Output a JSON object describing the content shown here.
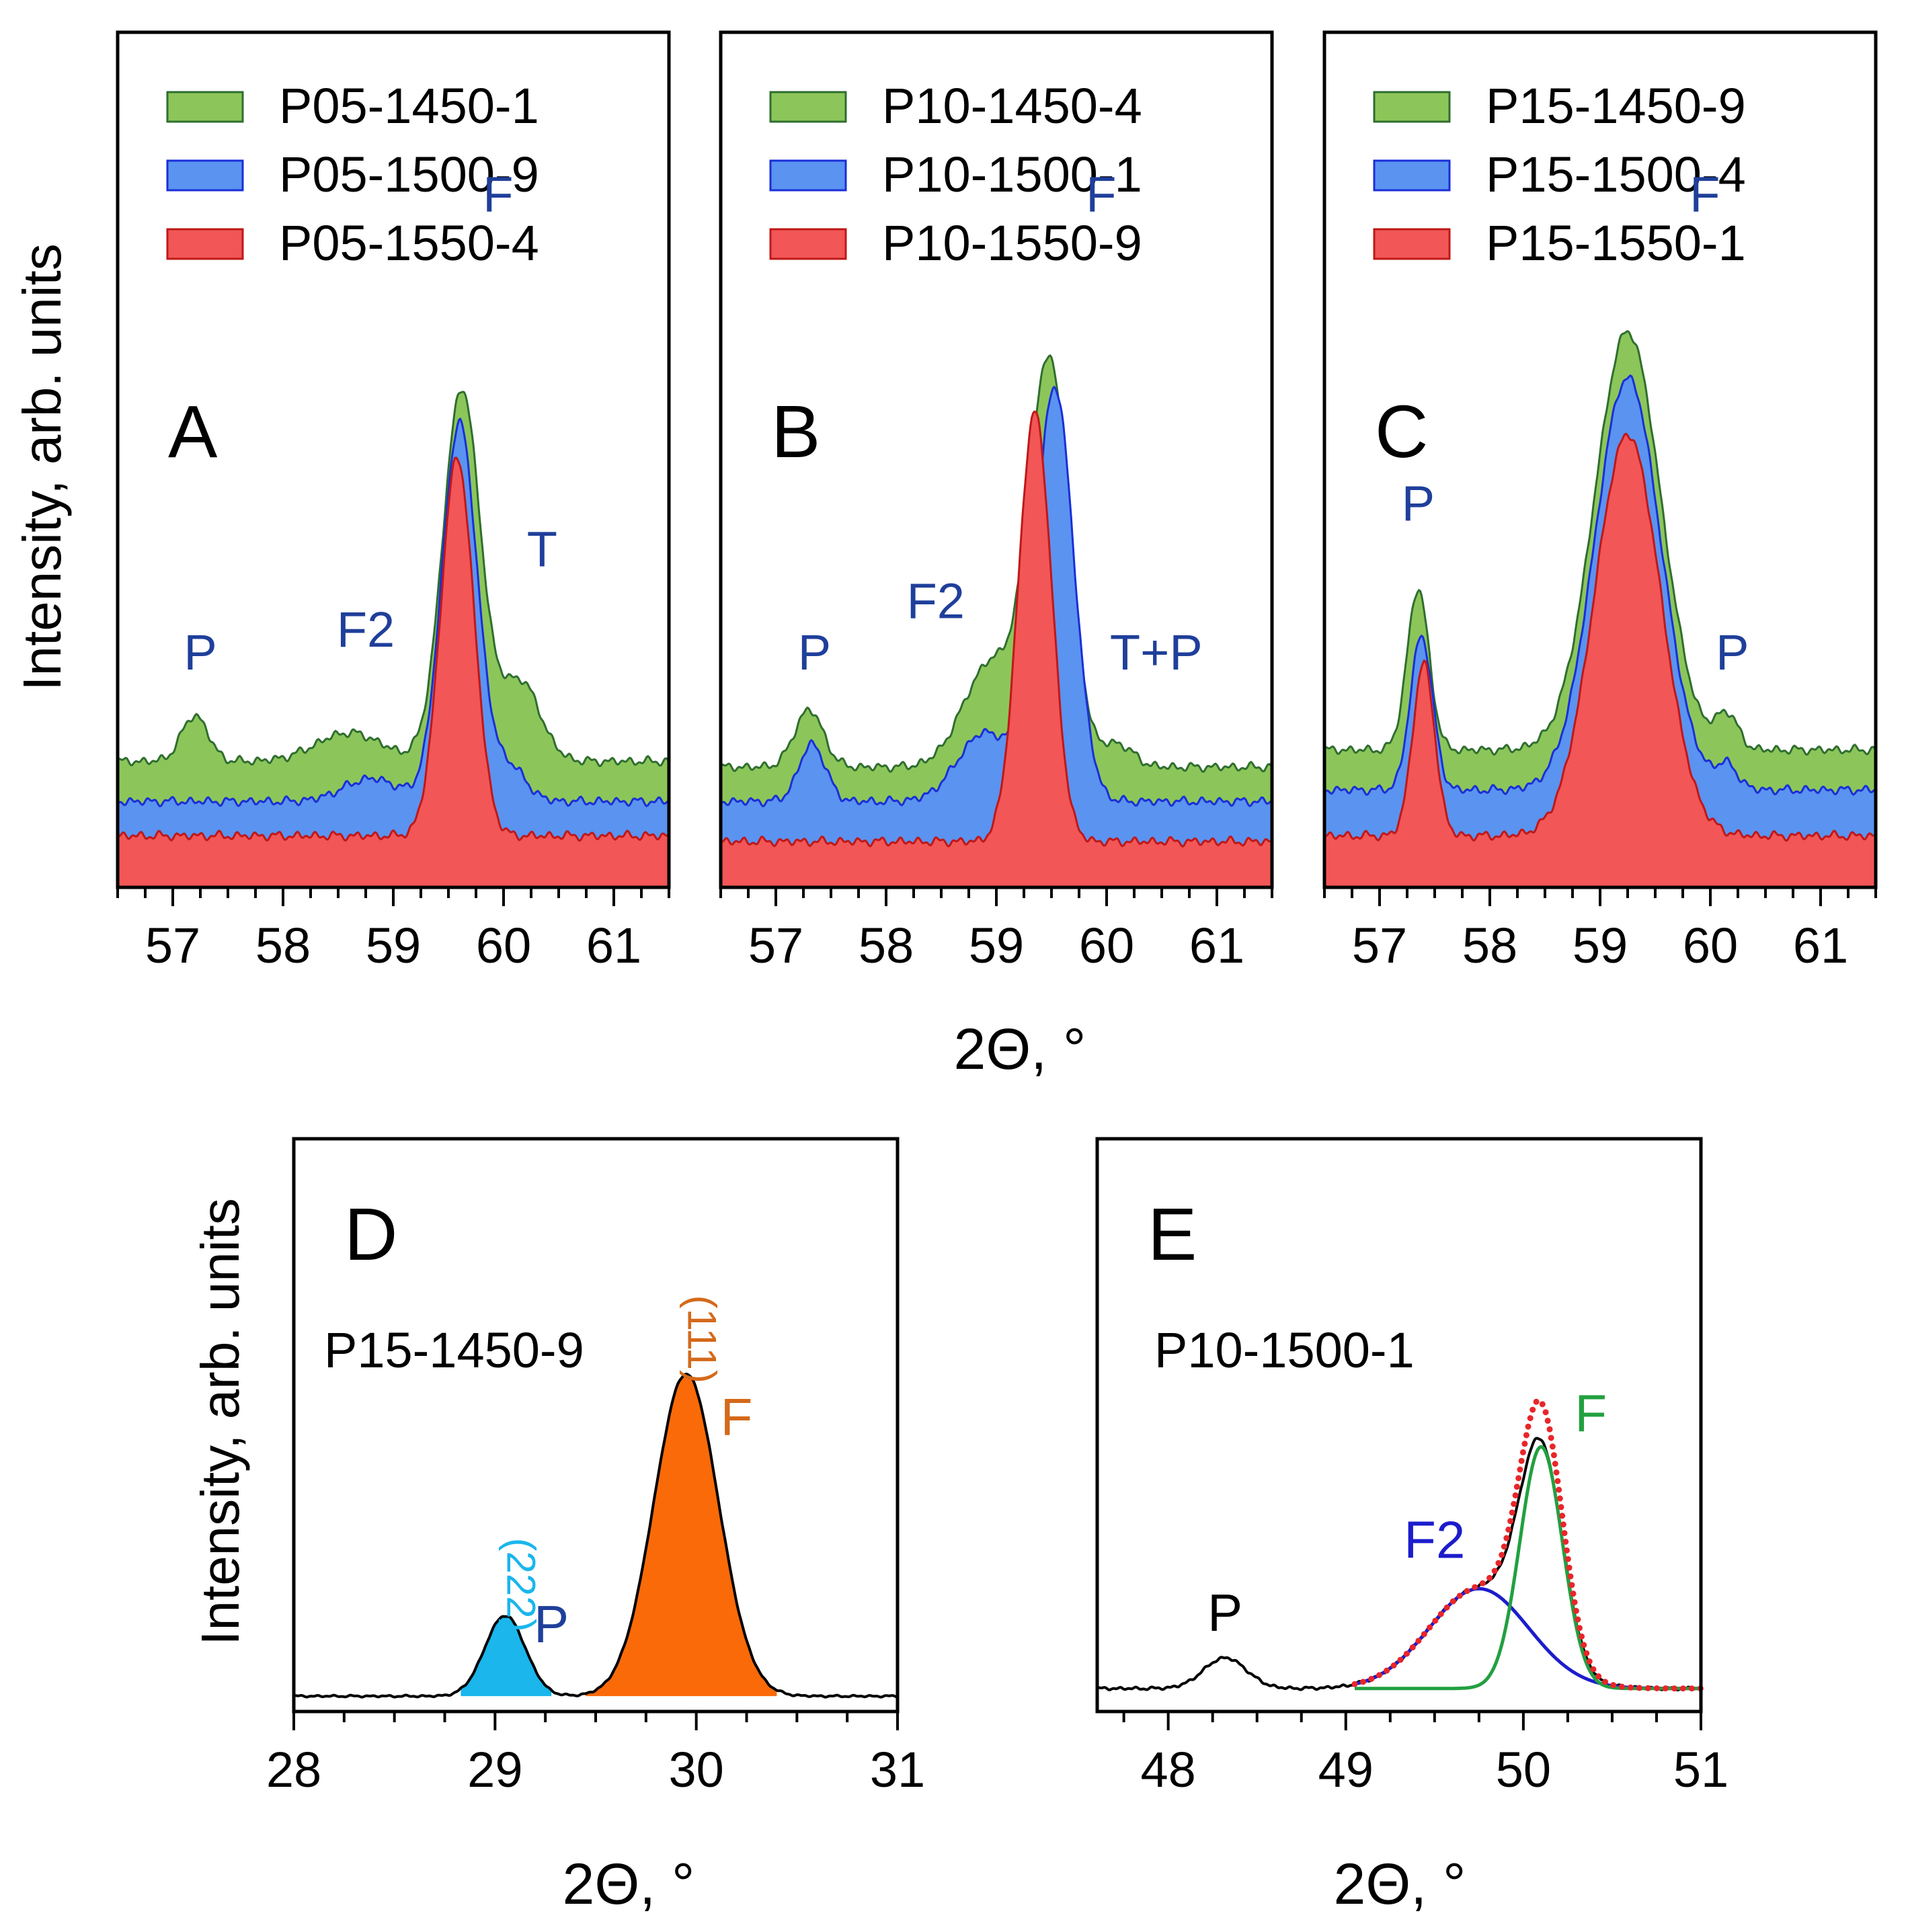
{
  "y_axis_label": "Intensity, arb. units",
  "x_axis_label": "2Θ, °",
  "colors": {
    "green_fill": "#8cc65a",
    "green_line": "#2f6e2f",
    "blue_fill": "#5b93f0",
    "blue_line": "#1a2fd8",
    "red_fill": "#f25656",
    "red_line": "#c01818",
    "cyan_fill": "#1ab6ec",
    "orange_fill": "#fb6a08",
    "orange_text": "#d4691a",
    "label_blue": "#1f3f9a",
    "fit_green": "#22a040",
    "fit_blue": "#1c1ccc",
    "fit_red_dots": "#e8262a",
    "axis": "#000000"
  },
  "chart_data": [
    {
      "id": "A",
      "type": "area",
      "panel_label": "A",
      "xlim": [
        56.5,
        61.5
      ],
      "xticks": [
        57,
        58,
        59,
        60,
        61
      ],
      "xtick_labels": [
        "57",
        "58",
        "59",
        "60",
        "61"
      ],
      "ylim": [
        0,
        100
      ],
      "series": [
        {
          "name": "P05-1450-1",
          "color": "green",
          "baseline": 22,
          "peaks": [
            [
              57.2,
              8,
              0.12
            ],
            [
              58.6,
              5,
              0.3
            ],
            [
              59.62,
              65,
              0.17
            ],
            [
              60.15,
              14,
              0.18
            ]
          ]
        },
        {
          "name": "P05-1500-9",
          "color": "blue",
          "baseline": 15,
          "peaks": [
            [
              58.8,
              4,
              0.25
            ],
            [
              59.6,
              66,
              0.16
            ],
            [
              60.05,
              6,
              0.15
            ]
          ]
        },
        {
          "name": "P05-1550-4",
          "color": "red",
          "baseline": 9,
          "peaks": [
            [
              59.58,
              66,
              0.15
            ]
          ]
        }
      ],
      "peak_labels": [
        {
          "text": "P",
          "x": 57.25,
          "y": 38
        },
        {
          "text": "F2",
          "x": 58.75,
          "y": 42
        },
        {
          "text": "F",
          "x": 59.95,
          "y": 118
        },
        {
          "text": "T",
          "x": 60.35,
          "y": 56
        }
      ]
    },
    {
      "id": "B",
      "type": "area",
      "panel_label": "B",
      "xlim": [
        56.5,
        61.5
      ],
      "xticks": [
        57,
        58,
        59,
        60,
        61
      ],
      "xtick_labels": [
        "57",
        "58",
        "59",
        "60",
        "61"
      ],
      "ylim": [
        0,
        100
      ],
      "series": [
        {
          "name": "P10-1450-4",
          "color": "green",
          "baseline": 21,
          "peaks": [
            [
              57.3,
              10,
              0.13
            ],
            [
              58.95,
              18,
              0.25
            ],
            [
              59.48,
              70,
              0.18
            ],
            [
              60.1,
              4,
              0.14
            ]
          ]
        },
        {
          "name": "P10-1500-1",
          "color": "blue",
          "baseline": 15,
          "peaks": [
            [
              57.33,
              10,
              0.12
            ],
            [
              58.9,
              12,
              0.25
            ],
            [
              59.53,
              72,
              0.17
            ]
          ]
        },
        {
          "name": "P10-1550-9",
          "color": "red",
          "baseline": 8,
          "peaks": [
            [
              59.35,
              75,
              0.15
            ]
          ]
        }
      ],
      "peak_labels": [
        {
          "text": "P",
          "x": 57.35,
          "y": 38
        },
        {
          "text": "F2",
          "x": 58.45,
          "y": 47
        },
        {
          "text": "F",
          "x": 59.95,
          "y": 118
        },
        {
          "text": "T+P",
          "x": 60.45,
          "y": 38
        }
      ]
    },
    {
      "id": "C",
      "type": "area",
      "panel_label": "C",
      "xlim": [
        56.5,
        61.5
      ],
      "xticks": [
        57,
        58,
        59,
        60,
        61
      ],
      "xtick_labels": [
        "57",
        "58",
        "59",
        "60",
        "61"
      ],
      "ylim": [
        0,
        100
      ],
      "series": [
        {
          "name": "P15-1450-9",
          "color": "green",
          "baseline": 24,
          "peaks": [
            [
              57.35,
              28,
              0.1
            ],
            [
              59.25,
              73,
              0.3
            ],
            [
              60.15,
              6,
              0.1
            ]
          ]
        },
        {
          "name": "P15-1500-4",
          "color": "blue",
          "baseline": 17,
          "peaks": [
            [
              57.38,
              27,
              0.1
            ],
            [
              59.25,
              72,
              0.3
            ],
            [
              60.15,
              4,
              0.1
            ]
          ]
        },
        {
          "name": "P15-1550-1",
          "color": "red",
          "baseline": 9,
          "peaks": [
            [
              57.4,
              30,
              0.1
            ],
            [
              59.25,
              70,
              0.3
            ]
          ]
        }
      ],
      "peak_labels": [
        {
          "text": "P",
          "x": 57.35,
          "y": 64
        },
        {
          "text": "F",
          "x": 59.95,
          "y": 118
        },
        {
          "text": "P",
          "x": 60.2,
          "y": 38
        }
      ]
    },
    {
      "id": "D",
      "type": "area",
      "panel_label": "D",
      "sample": "P15-1450-9",
      "xlim": [
        28,
        31
      ],
      "xticks": [
        28,
        29,
        30,
        31
      ],
      "xtick_labels": [
        "28",
        "29",
        "30",
        "31"
      ],
      "ylim": [
        0,
        100
      ],
      "baseline": 4,
      "peaks": [
        {
          "name": "P (222)",
          "center": 29.05,
          "height": 21,
          "width": 0.1,
          "fill": "cyan",
          "fill_range": [
            28.83,
            29.28
          ]
        },
        {
          "name": "F (111)",
          "center": 29.95,
          "height": 84,
          "width": 0.16,
          "fill": "orange",
          "fill_range": [
            29.45,
            30.4
          ]
        }
      ],
      "peak_labels": [
        {
          "text": "P",
          "x": 29.28,
          "y": 18,
          "color": "label_blue"
        },
        {
          "text": "(222)",
          "x": 29.06,
          "y": 33,
          "color": "cyan_fill",
          "rotate": true
        },
        {
          "text": "F",
          "x": 30.2,
          "y": 72,
          "color": "orange_text"
        },
        {
          "text": "(111)",
          "x": 29.96,
          "y": 97,
          "color": "orange_text",
          "rotate": true
        }
      ]
    },
    {
      "id": "E",
      "type": "line",
      "panel_label": "E",
      "sample": "P10-1500-1",
      "xlim": [
        47.6,
        51.0
      ],
      "xticks": [
        48,
        49,
        50,
        51
      ],
      "xtick_labels": [
        "48",
        "49",
        "50",
        "51"
      ],
      "ylim": [
        0,
        100
      ],
      "baseline": 6,
      "measured_peaks": [
        [
          48.32,
          8,
          0.12
        ],
        [
          49.75,
          26,
          0.28
        ],
        [
          50.1,
          53,
          0.12
        ]
      ],
      "fit_range": [
        49.05,
        51.0
      ],
      "fit_components": [
        {
          "name": "F2",
          "center": 49.75,
          "height": 26,
          "width": 0.28,
          "color": "fit_blue"
        },
        {
          "name": "F",
          "center": 50.1,
          "height": 63,
          "width": 0.12,
          "color": "fit_green"
        }
      ],
      "peak_labels": [
        {
          "text": "P",
          "x": 48.32,
          "y": 21,
          "color": "axis"
        },
        {
          "text": "F2",
          "x": 49.5,
          "y": 40,
          "color": "fit_blue"
        },
        {
          "text": "F",
          "x": 50.38,
          "y": 73,
          "color": "fit_green"
        }
      ]
    }
  ]
}
